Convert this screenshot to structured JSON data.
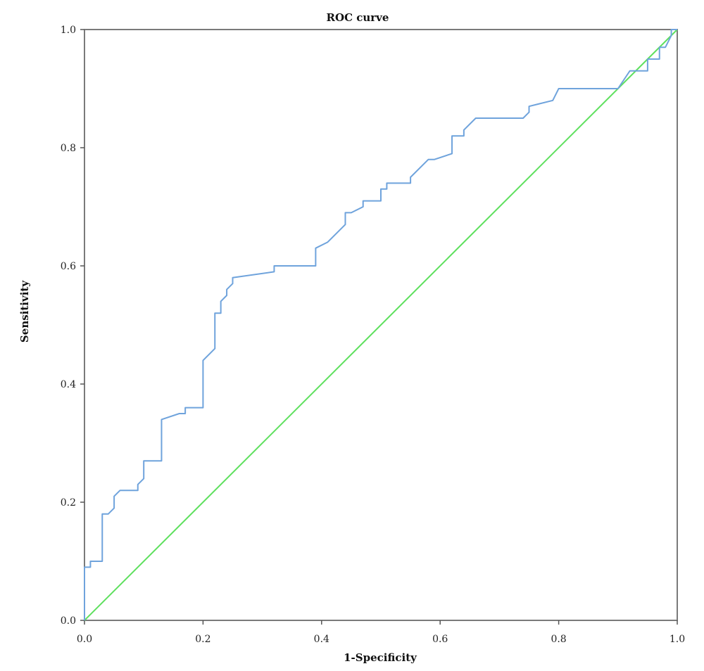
{
  "chart_data": {
    "type": "line",
    "title": "ROC curve",
    "xlabel": "1-Specificity",
    "ylabel": "Sensitivity",
    "xlim": [
      0,
      1
    ],
    "ylim": [
      0,
      1
    ],
    "xticks": [
      "0.0",
      "0.2",
      "0.4",
      "0.6",
      "0.8",
      "1.0"
    ],
    "yticks": [
      "0.0",
      "0.2",
      "0.4",
      "0.6",
      "0.8",
      "1.0"
    ],
    "grid": false,
    "legend": "none",
    "series": [
      {
        "color": "#6fa3dc",
        "points": [
          [
            0.0,
            0.0
          ],
          [
            0.0,
            0.09
          ],
          [
            0.01,
            0.09
          ],
          [
            0.01,
            0.1
          ],
          [
            0.03,
            0.1
          ],
          [
            0.03,
            0.18
          ],
          [
            0.04,
            0.18
          ],
          [
            0.05,
            0.19
          ],
          [
            0.05,
            0.21
          ],
          [
            0.06,
            0.22
          ],
          [
            0.09,
            0.22
          ],
          [
            0.09,
            0.23
          ],
          [
            0.1,
            0.24
          ],
          [
            0.1,
            0.27
          ],
          [
            0.13,
            0.27
          ],
          [
            0.13,
            0.34
          ],
          [
            0.16,
            0.35
          ],
          [
            0.17,
            0.35
          ],
          [
            0.17,
            0.36
          ],
          [
            0.2,
            0.36
          ],
          [
            0.2,
            0.44
          ],
          [
            0.22,
            0.46
          ],
          [
            0.22,
            0.52
          ],
          [
            0.23,
            0.52
          ],
          [
            0.23,
            0.54
          ],
          [
            0.24,
            0.55
          ],
          [
            0.24,
            0.56
          ],
          [
            0.25,
            0.57
          ],
          [
            0.25,
            0.58
          ],
          [
            0.32,
            0.59
          ],
          [
            0.32,
            0.6
          ],
          [
            0.39,
            0.6
          ],
          [
            0.39,
            0.63
          ],
          [
            0.41,
            0.64
          ],
          [
            0.44,
            0.67
          ],
          [
            0.44,
            0.69
          ],
          [
            0.45,
            0.69
          ],
          [
            0.47,
            0.7
          ],
          [
            0.47,
            0.71
          ],
          [
            0.5,
            0.71
          ],
          [
            0.5,
            0.73
          ],
          [
            0.51,
            0.73
          ],
          [
            0.51,
            0.74
          ],
          [
            0.55,
            0.74
          ],
          [
            0.55,
            0.75
          ],
          [
            0.58,
            0.78
          ],
          [
            0.59,
            0.78
          ],
          [
            0.62,
            0.79
          ],
          [
            0.62,
            0.82
          ],
          [
            0.64,
            0.82
          ],
          [
            0.64,
            0.83
          ],
          [
            0.66,
            0.85
          ],
          [
            0.74,
            0.85
          ],
          [
            0.75,
            0.86
          ],
          [
            0.75,
            0.87
          ],
          [
            0.79,
            0.88
          ],
          [
            0.8,
            0.9
          ],
          [
            0.9,
            0.9
          ],
          [
            0.92,
            0.93
          ],
          [
            0.95,
            0.93
          ],
          [
            0.95,
            0.95
          ],
          [
            0.97,
            0.95
          ],
          [
            0.97,
            0.97
          ],
          [
            0.98,
            0.97
          ],
          [
            0.99,
            0.99
          ],
          [
            0.99,
            1.0
          ],
          [
            1.0,
            1.0
          ]
        ]
      },
      {
        "color": "#5ee05e",
        "points": [
          [
            0.0,
            0.0
          ],
          [
            1.0,
            1.0
          ]
        ]
      }
    ]
  }
}
